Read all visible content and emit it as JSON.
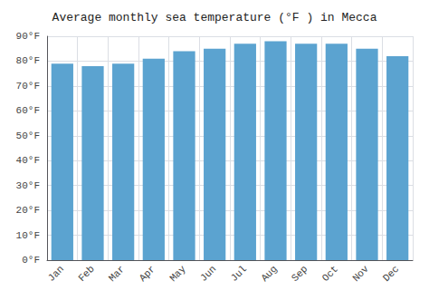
{
  "chart_data": {
    "type": "bar",
    "title": "Average monthly sea temperature (°F ) in Mecca",
    "categories": [
      "Jan",
      "Feb",
      "Mar",
      "Apr",
      "May",
      "Jun",
      "Jul",
      "Aug",
      "Sep",
      "Oct",
      "Nov",
      "Dec"
    ],
    "values": [
      79,
      78,
      79,
      81,
      84,
      85,
      87,
      88,
      87,
      87,
      85,
      82
    ],
    "color": "#5ba3d0",
    "ylim": [
      0,
      90
    ],
    "yticks": [
      {
        "value": 0,
        "label": "0°F"
      },
      {
        "value": 10,
        "label": "10°F"
      },
      {
        "value": 20,
        "label": "20°F"
      },
      {
        "value": 30,
        "label": "30°F"
      },
      {
        "value": 40,
        "label": "40°F"
      },
      {
        "value": 50,
        "label": "50°F"
      },
      {
        "value": 60,
        "label": "60°F"
      },
      {
        "value": 70,
        "label": "70°F"
      },
      {
        "value": 80,
        "label": "80°F"
      },
      {
        "value": 90,
        "label": "90°F"
      }
    ],
    "grid": true
  }
}
